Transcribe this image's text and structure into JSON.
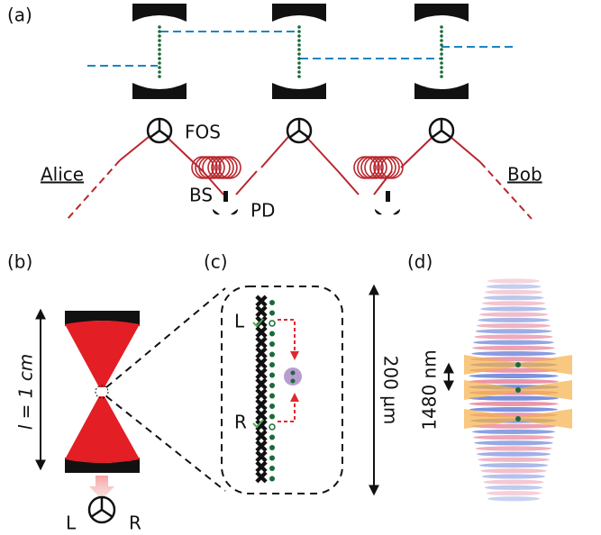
{
  "panel_labels": [
    "(a)",
    "(b)",
    "(c)",
    "(d)"
  ],
  "network": {
    "end_nodes": [
      "Alice",
      "Bob"
    ],
    "labels": {
      "fos": "FOS",
      "bs": "BS",
      "pd": "PD"
    }
  },
  "cavity": {
    "length": "l = 1 cm",
    "detector_labels": [
      "L",
      "R"
    ]
  },
  "array": {
    "labels": [
      "L",
      "R"
    ],
    "scale": "200 μm"
  },
  "lattice": {
    "spacing": "1480 nm"
  }
}
